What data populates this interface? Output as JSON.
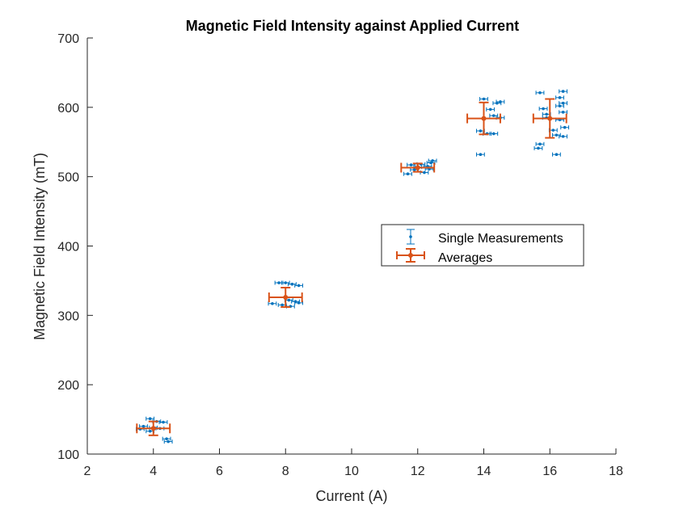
{
  "chart_data": {
    "type": "scatter",
    "title": "Magnetic Field Intensity against Applied Current",
    "xlabel": "Current (A)",
    "ylabel": "Magnetic Field Intensity (mT)",
    "xlim": [
      2,
      18
    ],
    "ylim": [
      100,
      700
    ],
    "xticks": [
      2,
      4,
      6,
      8,
      10,
      12,
      14,
      16,
      18
    ],
    "yticks": [
      100,
      200,
      300,
      400,
      500,
      600,
      700
    ],
    "grid": false,
    "legend_position": "center-right",
    "colors": {
      "single": "#0072BD",
      "average": "#D95319",
      "axis": "#262626"
    },
    "series": [
      {
        "name": "Single Measurements",
        "marker": "point-with-error-bars",
        "x_error": 0.12,
        "y_error": 1,
        "points": [
          [
            3.9,
            151
          ],
          [
            3.7,
            140
          ],
          [
            4.1,
            147
          ],
          [
            4.3,
            146
          ],
          [
            4.0,
            138
          ],
          [
            3.6,
            136
          ],
          [
            4.2,
            137
          ],
          [
            3.9,
            133
          ],
          [
            4.4,
            122
          ],
          [
            4.45,
            118
          ],
          [
            7.6,
            317
          ],
          [
            7.8,
            347
          ],
          [
            8.0,
            347
          ],
          [
            8.2,
            345
          ],
          [
            8.4,
            343
          ],
          [
            8.1,
            322
          ],
          [
            8.3,
            320
          ],
          [
            8.4,
            318
          ],
          [
            8.15,
            313
          ],
          [
            7.9,
            315
          ],
          [
            11.7,
            504
          ],
          [
            11.9,
            510
          ],
          [
            12.0,
            514
          ],
          [
            12.1,
            518
          ],
          [
            12.2,
            506
          ],
          [
            12.3,
            515
          ],
          [
            12.4,
            520
          ],
          [
            12.45,
            523
          ],
          [
            11.8,
            517
          ],
          [
            12.35,
            511
          ],
          [
            13.9,
            532
          ],
          [
            14.0,
            612
          ],
          [
            14.2,
            597
          ],
          [
            14.4,
            606
          ],
          [
            14.5,
            608
          ],
          [
            14.3,
            588
          ],
          [
            14.5,
            585
          ],
          [
            14.1,
            562
          ],
          [
            14.3,
            562
          ],
          [
            13.9,
            566
          ],
          [
            15.7,
            621
          ],
          [
            15.8,
            598
          ],
          [
            15.7,
            547
          ],
          [
            15.65,
            541
          ],
          [
            15.9,
            590
          ],
          [
            16.2,
            532
          ],
          [
            16.4,
            623
          ],
          [
            16.3,
            614
          ],
          [
            16.4,
            606
          ],
          [
            16.3,
            602
          ],
          [
            16.4,
            593
          ],
          [
            16.3,
            582
          ],
          [
            16.45,
            571
          ],
          [
            16.2,
            560
          ],
          [
            16.4,
            558
          ],
          [
            16.1,
            567
          ],
          [
            15.9,
            585
          ]
        ]
      },
      {
        "name": "Averages",
        "marker": "filled-circle-with-error-bars",
        "points": [
          {
            "x": 4,
            "y": 137,
            "xerr": 0.5,
            "yerr": 10
          },
          {
            "x": 8,
            "y": 326,
            "xerr": 0.5,
            "yerr": 14
          },
          {
            "x": 12,
            "y": 513,
            "xerr": 0.5,
            "yerr": 6
          },
          {
            "x": 14,
            "y": 584,
            "xerr": 0.5,
            "yerr": 23
          },
          {
            "x": 16,
            "y": 584,
            "xerr": 0.5,
            "yerr": 28
          }
        ]
      }
    ]
  }
}
